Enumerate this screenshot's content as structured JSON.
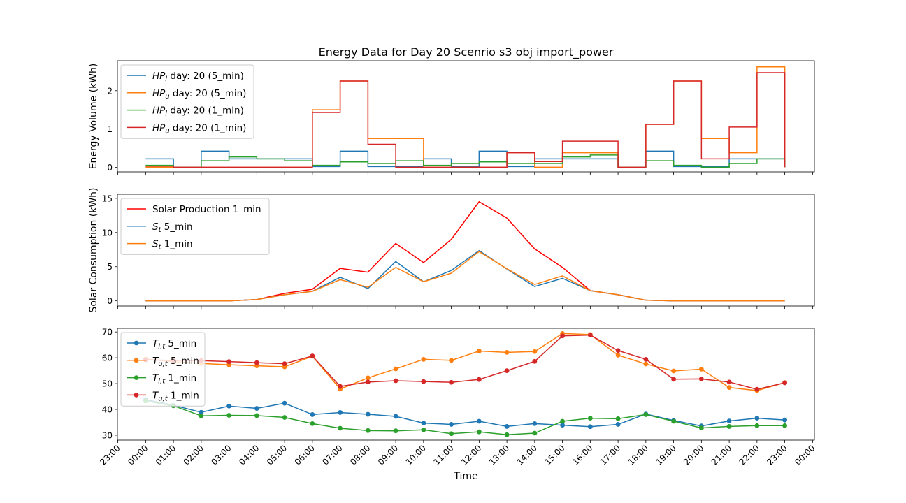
{
  "chart_data": [
    {
      "type": "line",
      "step": true,
      "title": "Energy Data for Day 20 Scenrio s3 obj import_power",
      "xlabel": "",
      "ylabel": "Energy Volume (kWh)",
      "x_ticks": [
        "23:00",
        "00:00",
        "01:00",
        "02:00",
        "03:00",
        "04:00",
        "05:00",
        "06:00",
        "07:00",
        "08:00",
        "09:00",
        "10:00",
        "11:00",
        "12:00",
        "13:00",
        "14:00",
        "15:00",
        "16:00",
        "17:00",
        "18:00",
        "19:00",
        "20:00",
        "21:00",
        "22:00",
        "23:00",
        "00:00"
      ],
      "ylim": [
        -0.12,
        2.78
      ],
      "yticks": [
        0,
        1,
        2
      ],
      "legend_position": "upper-left",
      "series": [
        {
          "name": "HP_l day: 20 (5_min)",
          "label_main": "HP",
          "label_sub": "l",
          "label_rest": " day: 20 (5_min)",
          "color": "#1f77b4",
          "values": [
            0.22,
            0.0,
            0.42,
            0.22,
            0.22,
            0.22,
            0.02,
            0.42,
            0.02,
            0.02,
            0.22,
            0.02,
            0.42,
            0.02,
            0.22,
            0.22,
            0.22,
            0.0,
            0.42,
            0.02,
            0.02,
            0.22,
            0.22,
            0.22
          ]
        },
        {
          "name": "HP_u day: 20 (5_min)",
          "label_main": "HP",
          "label_sub": "u",
          "label_rest": " day: 20 (5_min)",
          "color": "#ff7f0e",
          "values": [
            0.0,
            0.0,
            0.0,
            0.0,
            0.0,
            0.0,
            1.5,
            2.25,
            0.75,
            0.75,
            0.0,
            0.0,
            0.0,
            0.38,
            0.0,
            0.38,
            0.38,
            0.0,
            1.12,
            2.25,
            0.75,
            0.38,
            2.62,
            1.5
          ]
        },
        {
          "name": "HP_l day: 20 (1_min)",
          "label_main": "HP",
          "label_sub": "l",
          "label_rest": " day: 20 (1_min)",
          "color": "#2ca02c",
          "values": [
            0.05,
            0.0,
            0.17,
            0.27,
            0.22,
            0.17,
            0.05,
            0.14,
            0.1,
            0.17,
            0.05,
            0.1,
            0.14,
            0.1,
            0.1,
            0.27,
            0.32,
            0.0,
            0.17,
            0.05,
            0.0,
            0.1,
            0.22,
            0.14
          ]
        },
        {
          "name": "HP_u day: 20 (1_min)",
          "label_main": "HP",
          "label_sub": "u",
          "label_rest": " day: 20 (1_min)",
          "color": "#d62728",
          "values": [
            0.03,
            0.0,
            0.0,
            0.0,
            0.0,
            0.0,
            1.43,
            2.25,
            0.6,
            0.0,
            0.0,
            0.0,
            0.0,
            0.38,
            0.15,
            0.68,
            0.68,
            0.0,
            1.12,
            2.25,
            0.22,
            1.05,
            2.47,
            1.5
          ]
        }
      ]
    },
    {
      "type": "line",
      "xlabel": "",
      "ylabel": "Solar Consumption (kWh)",
      "x_ticks": [
        "23:00",
        "00:00",
        "01:00",
        "02:00",
        "03:00",
        "04:00",
        "05:00",
        "06:00",
        "07:00",
        "08:00",
        "09:00",
        "10:00",
        "11:00",
        "12:00",
        "13:00",
        "14:00",
        "15:00",
        "16:00",
        "17:00",
        "18:00",
        "19:00",
        "20:00",
        "21:00",
        "22:00",
        "23:00",
        "00:00"
      ],
      "ylim": [
        -0.75,
        15.6
      ],
      "yticks": [
        0,
        5,
        10,
        15
      ],
      "legend_position": "upper-left",
      "series": [
        {
          "name": "Solar Production 1_min",
          "label_main": "Solar Production 1_min",
          "label_sub": "",
          "label_rest": "",
          "color": "#ff0000",
          "values": [
            0.0,
            0.0,
            0.0,
            0.0,
            0.2,
            1.1,
            1.7,
            4.75,
            4.2,
            8.4,
            5.6,
            9.0,
            14.5,
            12.1,
            7.6,
            4.9,
            1.5,
            0.9,
            0.1,
            0.0,
            0.0,
            0.0,
            0.0,
            0.0
          ]
        },
        {
          "name": "S_t 5_min",
          "label_main": "S",
          "label_sub": "t",
          "label_rest": " 5_min",
          "color": "#1f77b4",
          "values": [
            0.0,
            0.0,
            0.0,
            0.0,
            0.2,
            0.9,
            1.4,
            3.45,
            1.8,
            5.75,
            2.8,
            4.45,
            7.35,
            4.65,
            2.1,
            3.3,
            1.5,
            0.9,
            0.1,
            0.0,
            0.0,
            0.0,
            0.0,
            0.0
          ]
        },
        {
          "name": "S_t 1_min",
          "label_main": "S",
          "label_sub": "t",
          "label_rest": " 1_min",
          "color": "#ff7f0e",
          "values": [
            0.0,
            0.0,
            0.0,
            0.0,
            0.2,
            0.9,
            1.4,
            3.1,
            2.0,
            4.9,
            2.8,
            4.05,
            7.2,
            4.7,
            2.4,
            3.65,
            1.5,
            0.9,
            0.1,
            0.0,
            0.0,
            0.0,
            0.0,
            0.0
          ]
        }
      ]
    },
    {
      "type": "line",
      "markers": true,
      "xlabel": "Time",
      "ylabel": "",
      "x_ticks": [
        "23:00",
        "00:00",
        "01:00",
        "02:00",
        "03:00",
        "04:00",
        "05:00",
        "06:00",
        "07:00",
        "08:00",
        "09:00",
        "10:00",
        "11:00",
        "12:00",
        "13:00",
        "14:00",
        "15:00",
        "16:00",
        "17:00",
        "18:00",
        "19:00",
        "20:00",
        "21:00",
        "22:00",
        "23:00",
        "00:00"
      ],
      "ylim": [
        28.1,
        71.4
      ],
      "yticks": [
        30,
        40,
        50,
        60,
        70
      ],
      "legend_position": "upper-left",
      "series": [
        {
          "name": "T_l,t 5_min",
          "label_main": "T",
          "label_sub": "l,t",
          "label_rest": " 5_min",
          "color": "#1f77b4",
          "values": [
            43.8,
            41.6,
            38.9,
            41.3,
            40.4,
            42.4,
            38.0,
            38.8,
            38.1,
            37.3,
            34.7,
            34.2,
            35.4,
            33.4,
            34.5,
            33.9,
            33.3,
            34.2,
            38.2,
            35.7,
            33.6,
            35.5,
            36.6,
            35.9
          ]
        },
        {
          "name": "T_u,t 5_min",
          "label_main": "T",
          "label_sub": "u,t",
          "label_rest": " 5_min",
          "color": "#ff7f0e",
          "values": [
            59.5,
            58.5,
            57.8,
            57.3,
            56.9,
            56.5,
            60.6,
            47.9,
            52.2,
            55.7,
            59.4,
            59.0,
            62.6,
            62.1,
            62.4,
            69.4,
            69.0,
            61.0,
            57.6,
            54.9,
            55.6,
            48.5,
            47.3,
            50.4
          ]
        },
        {
          "name": "T_l,t 1_min",
          "label_main": "T",
          "label_sub": "l,t",
          "label_rest": " 1_min",
          "color": "#2ca02c",
          "values": [
            43.3,
            41.4,
            37.5,
            37.7,
            37.6,
            36.9,
            34.5,
            32.7,
            31.8,
            31.7,
            32.1,
            30.6,
            31.3,
            30.2,
            30.8,
            35.4,
            36.6,
            36.4,
            38.0,
            35.4,
            32.8,
            33.4,
            33.7,
            33.7
          ]
        },
        {
          "name": "T_u,t 1_min",
          "label_main": "T",
          "label_sub": "u,t",
          "label_rest": " 1_min",
          "color": "#d62728",
          "values": [
            59.2,
            59.0,
            58.9,
            58.5,
            58.1,
            57.7,
            60.7,
            48.9,
            50.6,
            51.1,
            50.8,
            50.5,
            51.6,
            55.0,
            58.6,
            68.5,
            68.8,
            62.8,
            59.4,
            51.7,
            51.8,
            50.6,
            47.8,
            50.3
          ]
        }
      ]
    }
  ]
}
